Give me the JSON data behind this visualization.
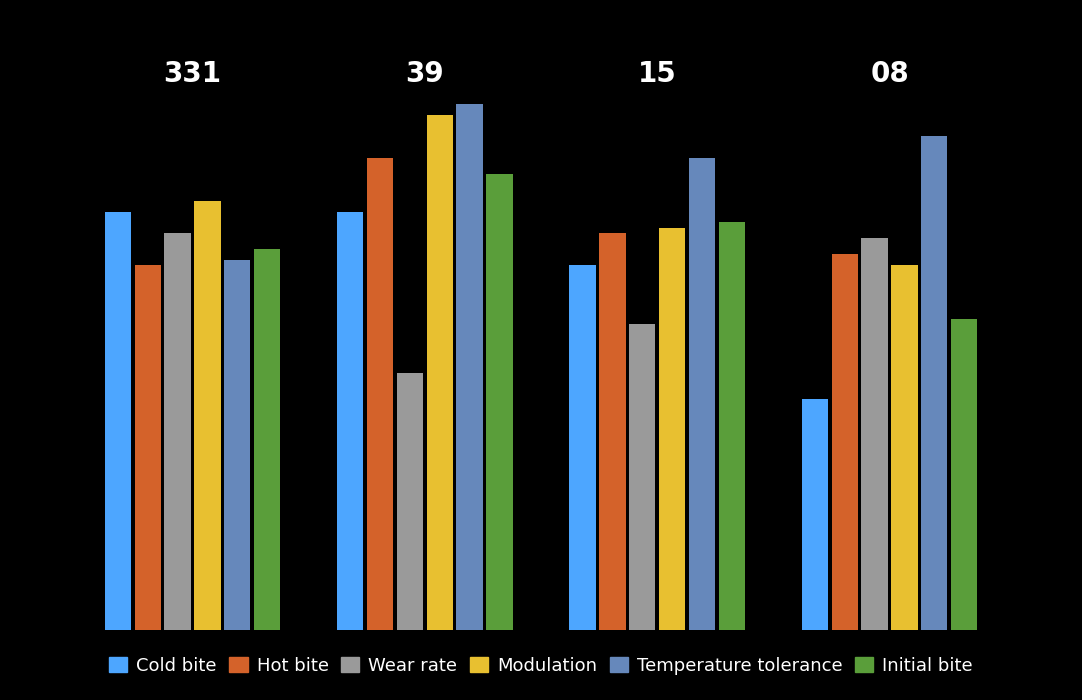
{
  "groups": [
    "331",
    "39",
    "15",
    "08"
  ],
  "series": [
    "Cold bite",
    "Hot bite",
    "Wear rate",
    "Modulation",
    "Temperature tolerance",
    "Initial bite"
  ],
  "colors": [
    "#4da6ff",
    "#d4622a",
    "#9a9a9a",
    "#e8c030",
    "#6688bb",
    "#5a9e3a"
  ],
  "values": {
    "331": [
      78,
      68,
      74,
      80,
      69,
      71
    ],
    "39": [
      78,
      88,
      48,
      96,
      98,
      85
    ],
    "15": [
      68,
      74,
      57,
      75,
      88,
      76
    ],
    "08": [
      43,
      70,
      73,
      68,
      92,
      58
    ]
  },
  "background_color": "#000000",
  "text_color": "#ffffff",
  "group_label_fontsize": 20,
  "legend_fontsize": 13
}
